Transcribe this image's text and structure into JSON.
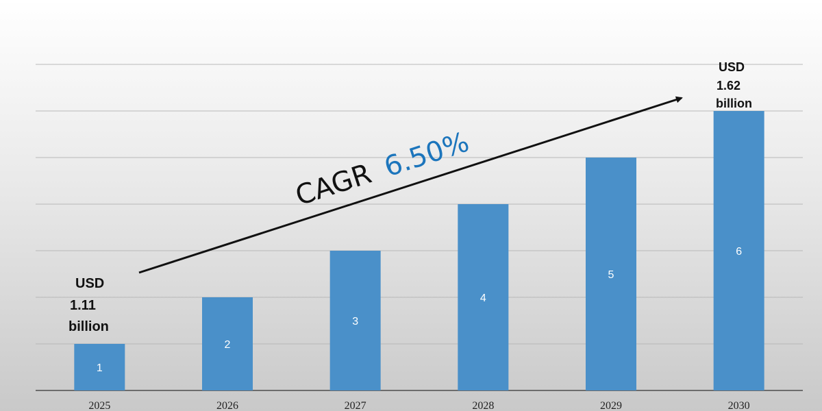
{
  "chart_data": {
    "type": "bar",
    "categories": [
      "2025",
      "2026",
      "2027",
      "2028",
      "2029",
      "2030"
    ],
    "values": [
      1,
      2,
      3,
      4,
      5,
      6
    ],
    "data_labels": [
      "1",
      "2",
      "3",
      "4",
      "5",
      "6"
    ],
    "ylim": [
      0,
      7
    ],
    "grid": true,
    "bar_color": "#4a90c9",
    "title": "",
    "xlabel": "",
    "ylabel": "",
    "annotations": {
      "start": {
        "line1": "USD",
        "line2": "1.11",
        "line3": "billion"
      },
      "end": {
        "line1": "USD",
        "line2": "1.62",
        "line3": "billion"
      },
      "cagr": {
        "prefix": "CAGR",
        "value": "6.50%",
        "value_color": "#1c75bc"
      }
    }
  }
}
